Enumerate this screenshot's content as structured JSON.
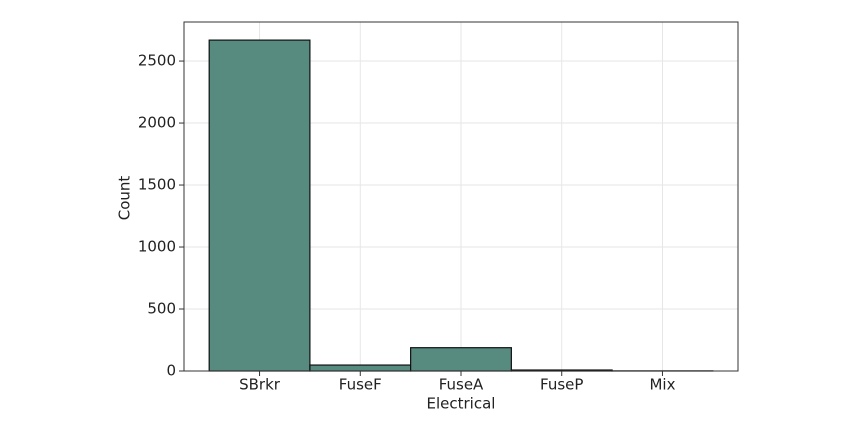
{
  "chart_data": {
    "type": "bar",
    "x_label": "Electrical",
    "y_label": "Count",
    "categories": [
      "SBrkr",
      "FuseF",
      "FuseA",
      "FuseP",
      "Mix"
    ],
    "values": [
      2669,
      48,
      188,
      8,
      1
    ],
    "color": "#588b80",
    "ylim": [
      0,
      2815
    ],
    "yticks": [
      0,
      500,
      1000,
      1500,
      2000,
      2500
    ],
    "grid": true
  }
}
